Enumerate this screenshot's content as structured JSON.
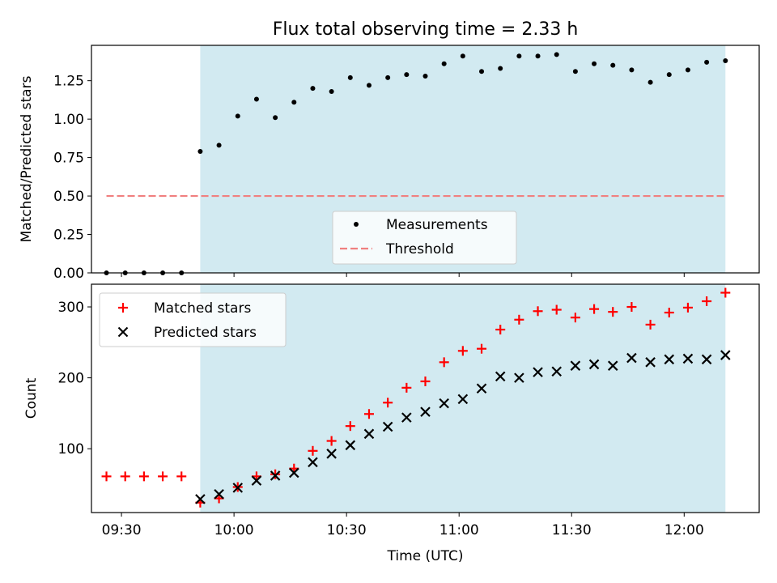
{
  "chart_data": [
    {
      "type": "scatter",
      "title": "Flux total observing time = 2.33 h",
      "ylabel": "Matched/Predicted stars",
      "xlim": [
        "09:22",
        "12:20"
      ],
      "ylim": [
        0,
        1.48
      ],
      "y_ticks": [
        "0.00",
        "0.25",
        "0.50",
        "0.75",
        "1.00",
        "1.25"
      ],
      "shaded_region": {
        "x_start": "09:51",
        "x_end": "12:11",
        "color": "#add8e6"
      },
      "series": [
        {
          "name": "Measurements",
          "marker": "dot",
          "color": "#000000",
          "points": [
            [
              "09:26",
              0.0
            ],
            [
              "09:31",
              0.0
            ],
            [
              "09:36",
              0.0
            ],
            [
              "09:41",
              0.0
            ],
            [
              "09:46",
              0.0
            ],
            [
              "09:51",
              0.79
            ],
            [
              "09:56",
              0.83
            ],
            [
              "10:01",
              1.02
            ],
            [
              "10:06",
              1.13
            ],
            [
              "10:11",
              1.01
            ],
            [
              "10:16",
              1.11
            ],
            [
              "10:21",
              1.2
            ],
            [
              "10:26",
              1.18
            ],
            [
              "10:31",
              1.27
            ],
            [
              "10:36",
              1.22
            ],
            [
              "10:41",
              1.27
            ],
            [
              "10:46",
              1.29
            ],
            [
              "10:51",
              1.28
            ],
            [
              "10:56",
              1.36
            ],
            [
              "11:01",
              1.41
            ],
            [
              "11:06",
              1.31
            ],
            [
              "11:11",
              1.33
            ],
            [
              "11:16",
              1.41
            ],
            [
              "11:21",
              1.41
            ],
            [
              "11:26",
              1.42
            ],
            [
              "11:31",
              1.31
            ],
            [
              "11:36",
              1.36
            ],
            [
              "11:41",
              1.35
            ],
            [
              "11:46",
              1.32
            ],
            [
              "11:51",
              1.24
            ],
            [
              "11:56",
              1.29
            ],
            [
              "12:01",
              1.32
            ],
            [
              "12:06",
              1.37
            ],
            [
              "12:11",
              1.38
            ]
          ]
        },
        {
          "name": "Threshold",
          "style": "dashed-line",
          "color": "#f08080",
          "points": [
            [
              "09:26",
              0.5
            ],
            [
              "12:11",
              0.5
            ]
          ]
        }
      ],
      "legend_placement": "lower-center"
    },
    {
      "type": "scatter",
      "xlabel": "Time (UTC)",
      "ylabel": "Count",
      "xlim": [
        "09:22",
        "12:20"
      ],
      "ylim": [
        10,
        332
      ],
      "y_ticks": [
        "100",
        "200",
        "300"
      ],
      "x_ticks": [
        "09:30",
        "10:00",
        "10:30",
        "11:00",
        "11:30",
        "12:00"
      ],
      "shaded_region": {
        "x_start": "09:51",
        "x_end": "12:11",
        "color": "#add8e6"
      },
      "series": [
        {
          "name": "Matched stars",
          "marker": "plus",
          "color": "#ff0000",
          "points": [
            [
              "09:26",
              61
            ],
            [
              "09:31",
              61
            ],
            [
              "09:36",
              61
            ],
            [
              "09:41",
              61
            ],
            [
              "09:46",
              61
            ],
            [
              "09:51",
              24
            ],
            [
              "09:56",
              30
            ],
            [
              "10:01",
              46
            ],
            [
              "10:06",
              61
            ],
            [
              "10:11",
              64
            ],
            [
              "10:16",
              72
            ],
            [
              "10:21",
              97
            ],
            [
              "10:26",
              111
            ],
            [
              "10:31",
              132
            ],
            [
              "10:36",
              149
            ],
            [
              "10:41",
              165
            ],
            [
              "10:46",
              186
            ],
            [
              "10:51",
              195
            ],
            [
              "10:56",
              222
            ],
            [
              "11:01",
              238
            ],
            [
              "11:06",
              241
            ],
            [
              "11:11",
              268
            ],
            [
              "11:16",
              282
            ],
            [
              "11:21",
              294
            ],
            [
              "11:26",
              296
            ],
            [
              "11:31",
              285
            ],
            [
              "11:36",
              297
            ],
            [
              "11:41",
              293
            ],
            [
              "11:46",
              300
            ],
            [
              "11:51",
              275
            ],
            [
              "11:56",
              292
            ],
            [
              "12:01",
              299
            ],
            [
              "12:06",
              308
            ],
            [
              "12:11",
              320
            ]
          ]
        },
        {
          "name": "Predicted stars",
          "marker": "x",
          "color": "#000000",
          "points": [
            [
              "09:51",
              29
            ],
            [
              "09:56",
              36
            ],
            [
              "10:01",
              45
            ],
            [
              "10:06",
              55
            ],
            [
              "10:11",
              62
            ],
            [
              "10:16",
              66
            ],
            [
              "10:21",
              81
            ],
            [
              "10:26",
              93
            ],
            [
              "10:31",
              105
            ],
            [
              "10:36",
              121
            ],
            [
              "10:41",
              131
            ],
            [
              "10:46",
              144
            ],
            [
              "10:51",
              152
            ],
            [
              "10:56",
              164
            ],
            [
              "11:01",
              170
            ],
            [
              "11:06",
              185
            ],
            [
              "11:11",
              202
            ],
            [
              "11:16",
              200
            ],
            [
              "11:21",
              208
            ],
            [
              "11:26",
              209
            ],
            [
              "11:31",
              217
            ],
            [
              "11:36",
              219
            ],
            [
              "11:41",
              217
            ],
            [
              "11:46",
              228
            ],
            [
              "11:51",
              222
            ],
            [
              "11:56",
              226
            ],
            [
              "12:01",
              227
            ],
            [
              "12:06",
              226
            ],
            [
              "12:11",
              232
            ]
          ]
        }
      ],
      "legend_placement": "top-left"
    }
  ]
}
